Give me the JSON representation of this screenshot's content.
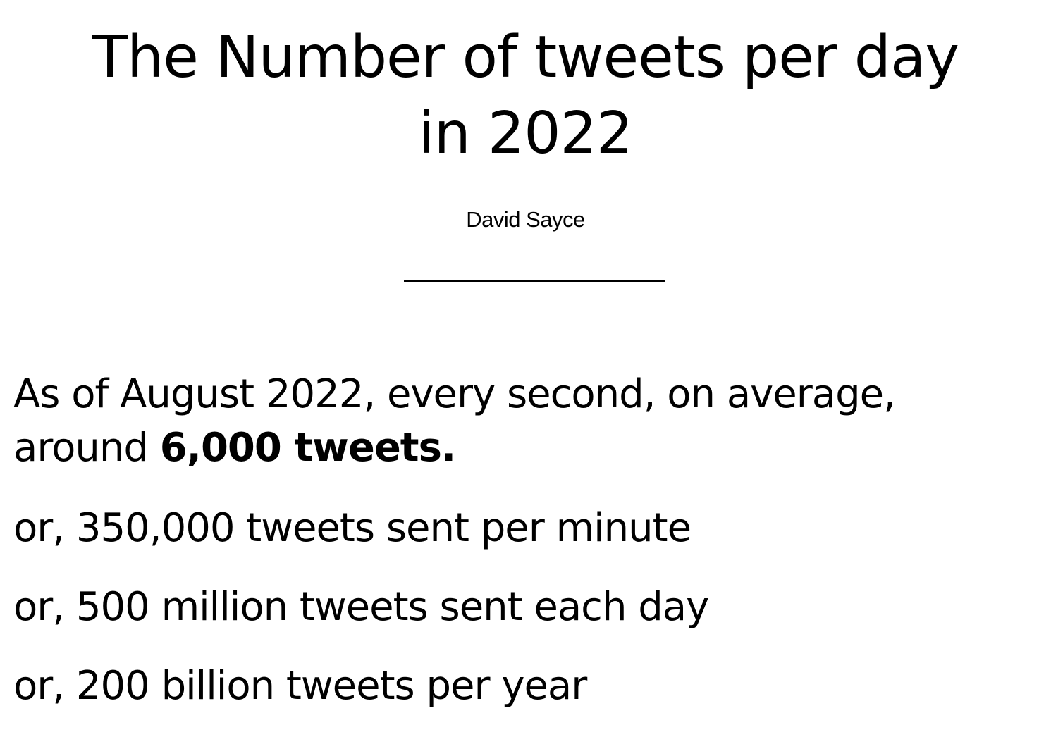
{
  "article": {
    "title_line1": "The Number of tweets per day",
    "title_line2": "in 2022",
    "author": "David Sayce",
    "intro_line1": "As of August 2022, every second, on average,",
    "intro_line2_prefix": "around ",
    "intro_line2_bold": "6,000 tweets.",
    "stats": [
      "or, 350,000 tweets sent per minute",
      "or, 500 million tweets sent each day",
      "or, 200 billion tweets per year"
    ]
  }
}
